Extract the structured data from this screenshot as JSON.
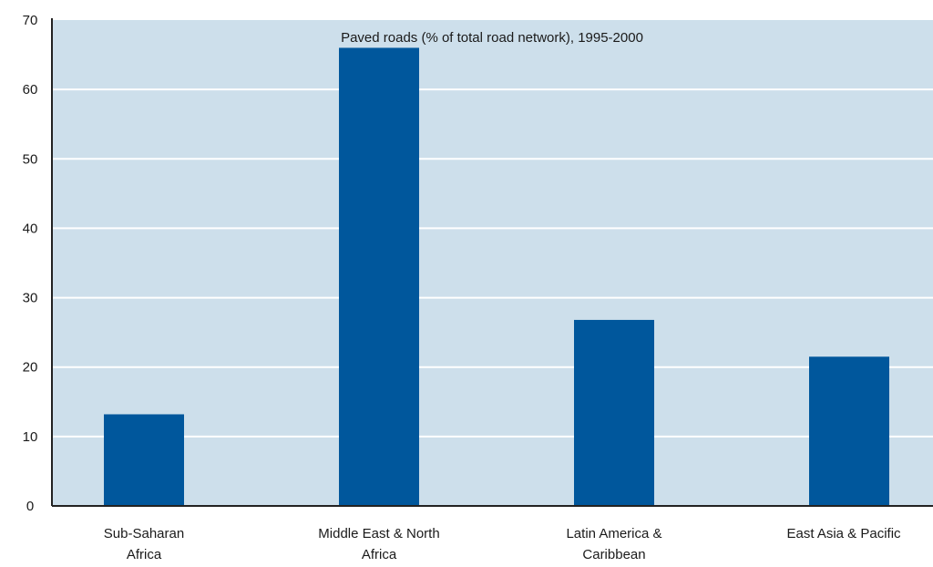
{
  "chart_data": {
    "type": "bar",
    "title": "Paved roads (% of total road network), 1995-2000",
    "categories": [
      [
        "Sub-Saharan",
        "Africa"
      ],
      [
        "Middle East & North",
        "Africa"
      ],
      [
        "Latin America &",
        "Caribbean"
      ],
      [
        "East Asia & Pacific"
      ]
    ],
    "values": [
      13.2,
      66,
      26.8,
      21.5
    ],
    "ylim": [
      0,
      70
    ],
    "yticks": [
      0,
      10,
      20,
      30,
      40,
      50,
      60,
      70
    ],
    "xlabel": "",
    "ylabel": "",
    "grid": true,
    "legend": "none"
  },
  "colors": {
    "plot_background": "#cddfeb",
    "bar": "#00579c",
    "gridline": "#ffffff",
    "axis": "#222222"
  }
}
